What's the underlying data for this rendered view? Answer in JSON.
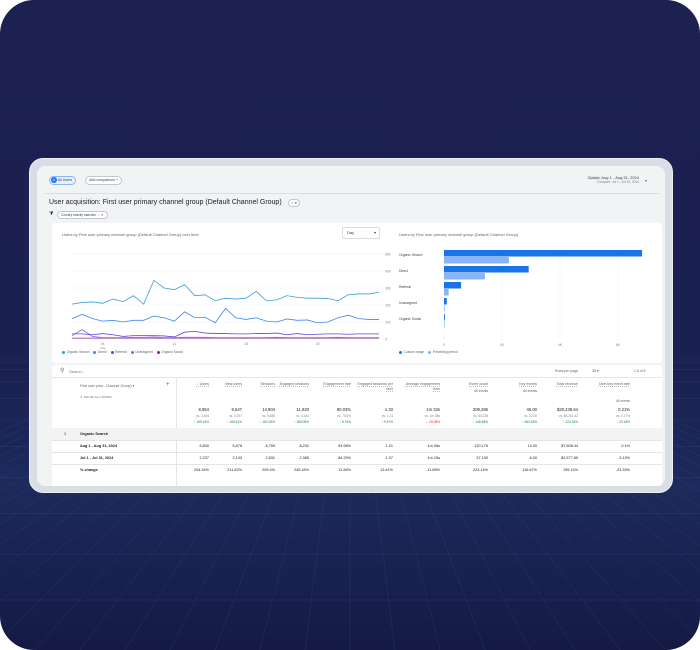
{
  "header": {
    "segment": "All Users",
    "segment_avatar": "A",
    "add_comparison": "Add comparison",
    "date_label": "Custom",
    "date_range": "Aug 1 - Aug 31, 2024",
    "compare": "Compare: Jul 1 - Jul 31, 2024",
    "title": "User acquisition: First user primary channel group (Default Channel Group)",
    "filter_chip": "Country exactly matches '...",
    "colors": {
      "accent": "#1a73e8",
      "check": "#188038"
    }
  },
  "line_chart": {
    "title": "Users by First user primary channel group (Default Channel Group) over time",
    "granularity": "Day",
    "chart_data": {
      "type": "line",
      "ylim": [
        0,
        500
      ],
      "yticks": [
        "500",
        "400",
        "300",
        "200",
        "100",
        "0"
      ],
      "xticks": [
        {
          "label": "04",
          "sub": "Aug",
          "day": 4
        },
        {
          "label": "11",
          "day": 11
        },
        {
          "label": "18",
          "day": 18
        },
        {
          "label": "25",
          "day": 25
        }
      ],
      "grid": true,
      "legend": "bottom",
      "series": [
        {
          "name": "Organic Search",
          "color": "#3a9fd6",
          "values": [
            205,
            215,
            218,
            210,
            235,
            220,
            255,
            205,
            345,
            300,
            290,
            320,
            255,
            260,
            225,
            240,
            235,
            240,
            280,
            225,
            230,
            255,
            245,
            240,
            240,
            238,
            225,
            260,
            265,
            265,
            275
          ]
        },
        {
          "name": "Direct",
          "color": "#4285f4",
          "values": [
            120,
            145,
            120,
            105,
            110,
            100,
            110,
            110,
            135,
            125,
            105,
            160,
            125,
            128,
            95,
            180,
            125,
            115,
            125,
            105,
            100,
            118,
            110,
            112,
            95,
            100,
            125,
            140,
            120,
            115,
            115
          ]
        },
        {
          "name": "Referral",
          "color": "#5b4bdb",
          "values": [
            30,
            30,
            25,
            32,
            25,
            15,
            20,
            20,
            20,
            18,
            12,
            40,
            45,
            35,
            32,
            32,
            30,
            30,
            32,
            32,
            35,
            25,
            32,
            25,
            28,
            30,
            30,
            28,
            30,
            30,
            30
          ]
        },
        {
          "name": "Unassigned",
          "color": "#9c5cf0",
          "values": [
            20,
            55,
            15,
            8,
            8,
            8,
            10,
            10,
            12,
            8,
            8,
            10,
            10,
            10,
            8,
            8,
            8,
            8,
            8,
            8,
            10,
            8,
            8,
            8,
            8,
            8,
            10,
            8,
            8,
            8,
            8
          ]
        },
        {
          "name": "Organic Social",
          "color": "#8e24aa",
          "values": [
            5,
            5,
            5,
            5,
            5,
            5,
            5,
            5,
            5,
            5,
            5,
            5,
            5,
            5,
            5,
            5,
            5,
            5,
            5,
            5,
            5,
            5,
            5,
            5,
            5,
            5,
            5,
            5,
            5,
            5,
            5
          ]
        }
      ]
    }
  },
  "bar_chart": {
    "title": "Users by First user primary channel group (Default Channel Group)",
    "chart_data": {
      "type": "bar",
      "orientation": "horizontal",
      "categories": [
        "Organic Search",
        "Direct",
        "Referral",
        "Unassigned",
        "Organic Social"
      ],
      "xlim": [
        0,
        6800
      ],
      "xticks": [
        "0",
        "2K",
        "4K",
        "6K"
      ],
      "legend": "bottom",
      "series": [
        {
          "name": "Custom range",
          "color": "#1a73e8",
          "values": [
            6830,
            2920,
            590,
            95,
            30
          ]
        },
        {
          "name": "Preceding period",
          "color": "#8ab4f8",
          "values": [
            2237,
            1410,
            160,
            25,
            10
          ]
        }
      ]
    }
  },
  "table": {
    "search_placeholder": "Search...",
    "rows_per_page_label": "Rows per page:",
    "rows_per_page": "10",
    "pagination": "1-6 of 6",
    "dimension_header": "First user prim...Channel Group)",
    "show_all_rows": "SHOW ALL ROWS",
    "columns": [
      {
        "label": "↓ Users",
        "total": "8,954",
        "vs": "vs. 3,454",
        "change": "↑ 159.24%",
        "dir": "up",
        "r1": "6,830",
        "r2": "2,237",
        "pct": "204.34%"
      },
      {
        "label": "New users",
        "total": "8,647",
        "vs": "vs. 3,297",
        "change": "↑ 166.31%",
        "dir": "up",
        "r1": "6,678",
        "r2": "2,143",
        "pct": "211.62%"
      },
      {
        "label": "Sessions",
        "total": "14,904",
        "vs": "vs. 5,685",
        "change": "↑ 162.16%",
        "dir": "up",
        "r1": "8,759",
        "r2": "2,831",
        "pct": "209.4%"
      },
      {
        "label": "Engaged sessions",
        "total": "11,920",
        "vs": "vs. 4,184",
        "change": "↑ 185.09%",
        "dir": "up",
        "r1": "8,232",
        "r2": "2,385",
        "pct": "245.16%"
      },
      {
        "label": "Engagement rate",
        "total": "80.03%",
        "vs": "vs. 73.6%",
        "change": "↑ 8.74%",
        "dir": "up",
        "r1": "93.98%",
        "r2": "84.25%",
        "pct": "11.56%"
      },
      {
        "label": "Engaged sessions per user",
        "total": "1.33",
        "vs": "vs. 1.21",
        "change": "↑ 9.97%",
        "dir": "up",
        "r1": "1.21",
        "r2": "1.07",
        "pct": "13.41%"
      },
      {
        "label": "Average engagement time",
        "total": "1m 32s",
        "vs": "vs. 1m 48s",
        "change": "↓ -15.08%",
        "dir": "down",
        "r1": "1m 06s",
        "r2": "1m 15s",
        "pct": "-11.89%"
      },
      {
        "label": "Event count",
        "sub": "All events",
        "total": "209,286",
        "vs": "vs. 84,228",
        "change": "↑ 148.48%",
        "dir": "up",
        "r1": "120,176",
        "r2": "37,190",
        "pct": "223.14%"
      },
      {
        "label": "Key events",
        "sub": "All events",
        "total": "46.00",
        "vs": "vs. 12.00",
        "change": "↑ 283.33%",
        "dir": "up",
        "r1": "13.00",
        "r2": "6.00",
        "pct": "116.67%"
      },
      {
        "label": "Total revenue",
        "total": "$20,438.64",
        "vs": "vs. $6,301.62",
        "change": "↑ 224.34%",
        "dir": "up",
        "r1": "$7,608.44",
        "r2": "$2,577.89",
        "pct": "195.14%"
      },
      {
        "label": "User key event rate",
        "sub": "All events",
        "total": "0.21%",
        "vs": "vs. 0.17%",
        "change": "↑ 22.15%",
        "dir": "up",
        "r1": "0.1%",
        "r2": "0.13%",
        "pct": "-23.33%"
      }
    ],
    "group": {
      "index": "1",
      "name": "Organic Search"
    },
    "rows": [
      "Aug 1 - Aug 31, 2024",
      "Jul 1 - Jul 31, 2024",
      "% change"
    ]
  }
}
